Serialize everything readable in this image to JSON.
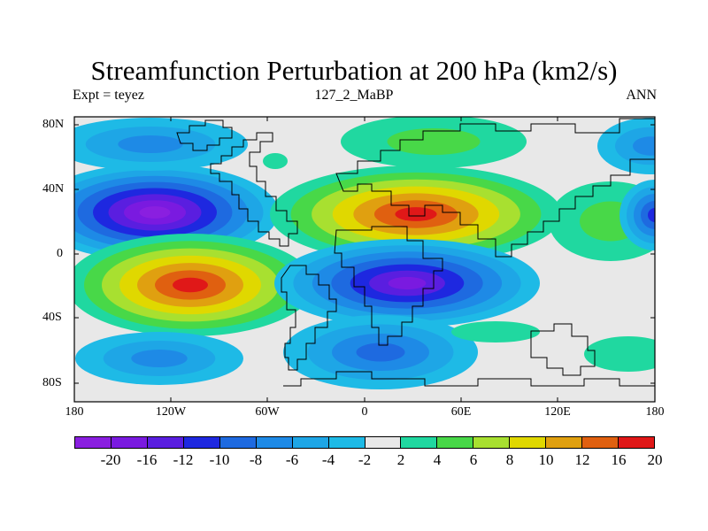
{
  "title": "Streamfunction Perturbation at 200 hPa (km2/s)",
  "subtitle_left": "Expt = teyez",
  "subtitle_center": "127_2_MaBP",
  "subtitle_right": "ANN",
  "lat_labels": [
    "80N",
    "40N",
    "0",
    "40S",
    "80S"
  ],
  "lon_labels": [
    "180",
    "120W",
    "60W",
    "0",
    "60E",
    "120E",
    "180"
  ],
  "colorbar": {
    "labels": [
      "-20",
      "-16",
      "-12",
      "-10",
      "-8",
      "-6",
      "-4",
      "-2",
      "2",
      "4",
      "6",
      "8",
      "10",
      "12",
      "16",
      "20"
    ],
    "colors": [
      "#8a1fe0",
      "#7a1ae0",
      "#5a1ee0",
      "#1e28e0",
      "#1e6ae0",
      "#1e8ae6",
      "#1ea6e6",
      "#1ebae6",
      "#e8e8e8",
      "#20d8a0",
      "#48d848",
      "#a8e030",
      "#e0d800",
      "#e0a010",
      "#e06010",
      "#e01818"
    ]
  },
  "field_colors": {
    "neutral": "#e8e8e8",
    "neg_levels": [
      "#1ebae6",
      "#1ea6e6",
      "#1e8ae6",
      "#1e6ae0",
      "#1e28e0",
      "#5a1ee0",
      "#7a1ae0",
      "#8a1fe0"
    ],
    "pos_levels": [
      "#20d8a0",
      "#48d848",
      "#a8e030",
      "#e0d800",
      "#e0a010",
      "#e06010",
      "#e01818"
    ]
  }
}
